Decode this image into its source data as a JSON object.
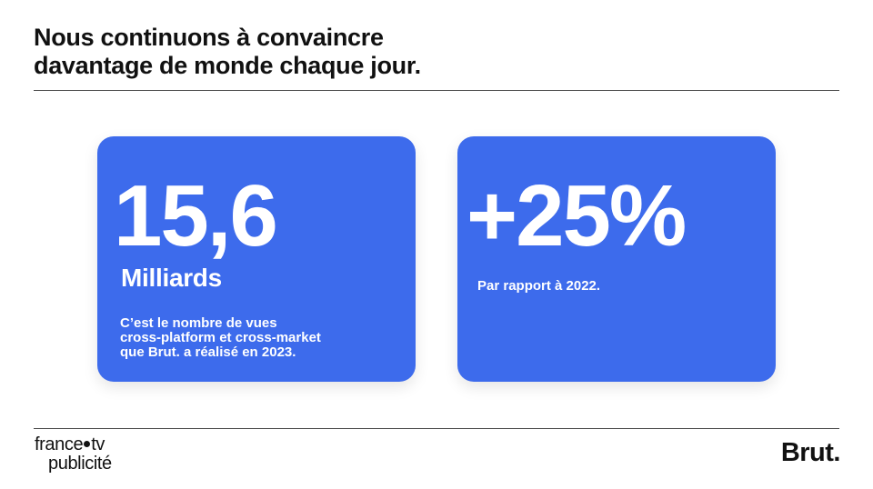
{
  "header": {
    "title_line1": "Nous continuons à convaincre",
    "title_line2": "davantage de monde chaque jour."
  },
  "cards": [
    {
      "value": "15,6",
      "unit": "Milliards",
      "description_lines": [
        "C’est le nombre de vues",
        "cross-platform et cross-market",
        "que Brut. a réalisé en 2023."
      ]
    },
    {
      "value": "+25%",
      "description": "Par rapport à 2022."
    }
  ],
  "footer": {
    "ftv_logo_left": "france",
    "ftv_logo_right": "tv",
    "ftv_logo_sub": "publicité",
    "brut_logo": "Brut."
  },
  "colors": {
    "card_background": "#3d6bec",
    "text_dark": "#111111",
    "text_on_card": "#ffffff"
  }
}
